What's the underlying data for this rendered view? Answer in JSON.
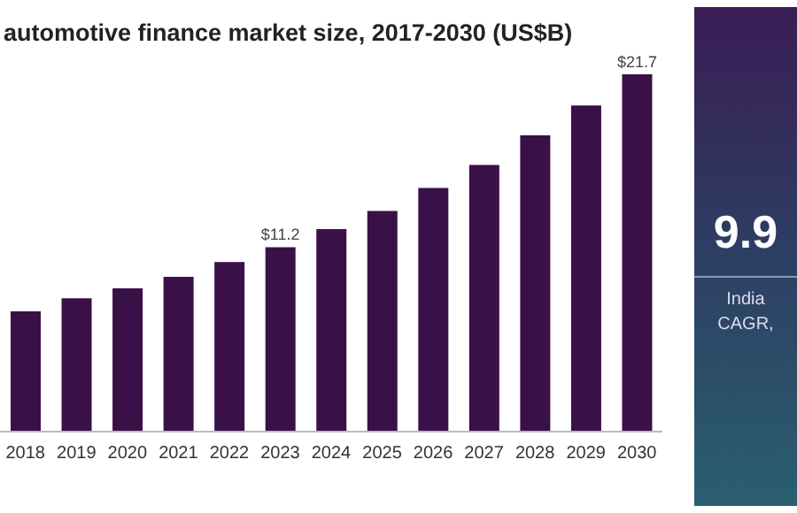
{
  "chart_data": {
    "type": "bar",
    "title": "automotive finance market size, 2017-2030 (US$B)",
    "categories": [
      "2018",
      "2019",
      "2020",
      "2021",
      "2022",
      "2023",
      "2024",
      "2025",
      "2026",
      "2027",
      "2028",
      "2029",
      "2030"
    ],
    "values": [
      7.3,
      8.1,
      8.7,
      9.4,
      10.3,
      11.2,
      12.3,
      13.4,
      14.8,
      16.2,
      18.0,
      19.8,
      21.7
    ],
    "value_labels": [
      null,
      null,
      null,
      null,
      null,
      "$11.2",
      null,
      null,
      null,
      null,
      null,
      null,
      "$21.7"
    ],
    "color": "#3a1049",
    "grid": false,
    "legend": false,
    "annotations": [
      "9.9",
      "India",
      "CAGR,"
    ]
  }
}
